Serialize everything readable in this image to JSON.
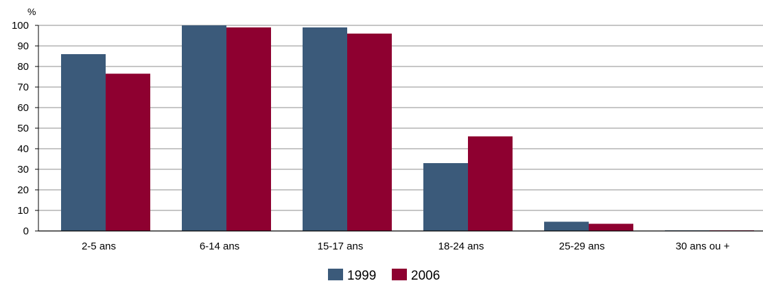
{
  "chart_data": {
    "type": "bar",
    "y_unit": "%",
    "ylim": [
      0,
      100
    ],
    "y_ticks": [
      "0",
      "10",
      "20",
      "30",
      "40",
      "50",
      "60",
      "70",
      "80",
      "90",
      "100"
    ],
    "grid": true,
    "legend_placement": "bottom-center",
    "categories": [
      "2-5 ans",
      "6-14 ans",
      "15-17 ans",
      "18-24 ans",
      "25-29 ans",
      "30 ans ou +"
    ],
    "series": [
      {
        "name": "1999",
        "color": "#3b5a7a",
        "values": [
          86,
          100,
          99,
          33,
          4.5,
          0.3
        ]
      },
      {
        "name": "2006",
        "color": "#8e0030",
        "values": [
          76.5,
          99,
          96,
          46,
          3.5,
          0.3
        ]
      }
    ]
  }
}
